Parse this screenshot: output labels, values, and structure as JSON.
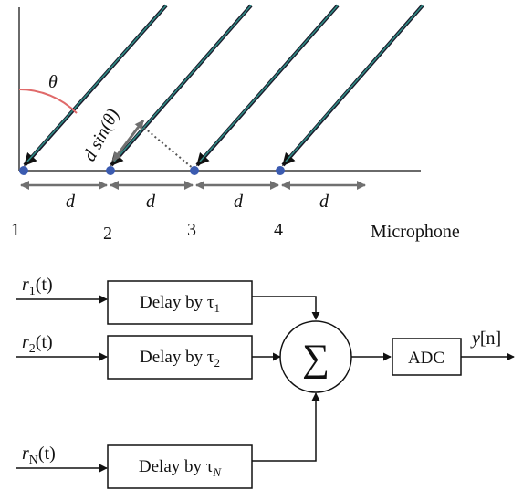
{
  "array": {
    "angle_symbol": "θ",
    "delay_label": "d sin(θ)",
    "spacing_labels": [
      "d",
      "d",
      "d",
      "d"
    ],
    "mic_numbers": [
      "1",
      "2",
      "3",
      "4"
    ],
    "mic_label": "Microphone"
  },
  "beamformer": {
    "inputs": [
      {
        "base": "r",
        "sub": "1",
        "arg": "(t)"
      },
      {
        "base": "r",
        "sub": "2",
        "arg": "(t)"
      },
      {
        "base": "r",
        "sub": "N",
        "arg": "(t)"
      }
    ],
    "delays": [
      {
        "text": "Delay by τ",
        "sub": "1"
      },
      {
        "text": "Delay by τ",
        "sub": "2"
      },
      {
        "text": "Delay by τ",
        "sub": "N"
      }
    ],
    "sum_symbol": "∑",
    "adc_label": "ADC",
    "output": {
      "base": "y",
      "arg": "[n]"
    }
  },
  "colors": {
    "wave_fill": "#2f8a84",
    "wave_outline": "#1a1a2a",
    "mic_dot": "#3b5bb0",
    "angle_arc": "#e06a6a",
    "dim_arrow": "#707070",
    "baseline": "#6a6a6a"
  }
}
